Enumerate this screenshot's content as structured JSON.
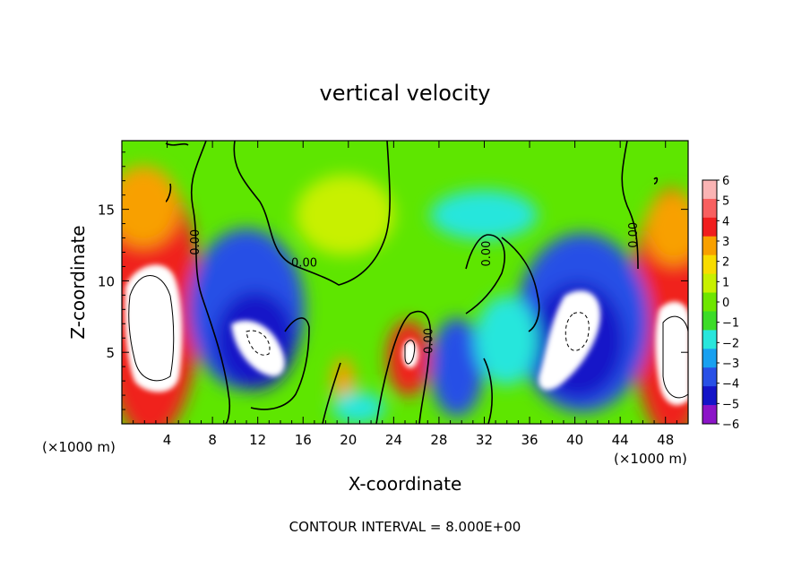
{
  "chart_data": {
    "type": "heatmap",
    "title": "vertical velocity",
    "xlabel": "X-coordinate",
    "ylabel": "Z-coordinate",
    "x_unit_left": "(×1000 m)",
    "x_unit_right": "(×1000 m)",
    "footer": "CONTOUR INTERVAL = 8.000E+00",
    "xlim": [
      0,
      50
    ],
    "ylim": [
      0,
      19.8
    ],
    "x_ticks": [
      4,
      8,
      12,
      16,
      20,
      24,
      28,
      32,
      36,
      40,
      44,
      48
    ],
    "y_ticks": [
      5,
      10,
      15
    ],
    "colorbar": {
      "range": [
        -6,
        6
      ],
      "labels": [
        "6",
        "5",
        "4",
        "3",
        "2",
        "1",
        "0",
        "−1",
        "−2",
        "−3",
        "−4",
        "−5",
        "−6"
      ],
      "colors": [
        "#fab4b4",
        "#f86060",
        "#f01e1e",
        "#f8a000",
        "#f8dc00",
        "#c8f000",
        "#6ee600",
        "#3cdc28",
        "#28e6dc",
        "#18a0f0",
        "#2850e6",
        "#1414c8",
        "#8c14c8"
      ]
    },
    "contour_labels": [
      {
        "text": "0.00",
        "x": 6.8,
        "y": 12.7,
        "rotate": -90
      },
      {
        "text": "0.00",
        "x": 16.1,
        "y": 11.0,
        "rotate": 0
      },
      {
        "text": "0.00",
        "x": 27.4,
        "y": 5.8,
        "rotate": -90
      },
      {
        "text": "0.00",
        "x": 32.5,
        "y": 11.9,
        "rotate": -90
      },
      {
        "text": "0.00",
        "x": 45.5,
        "y": 13.2,
        "rotate": -90
      }
    ],
    "features": [
      {
        "x": 2.5,
        "z": 6.5,
        "w": 6.5,
        "v": 6
      },
      {
        "x": 48,
        "z": 6.5,
        "w": 6.5,
        "v": 6
      },
      {
        "x": 25.8,
        "z": 5.2,
        "w": 3,
        "v": 5
      },
      {
        "x": 17.5,
        "z": 2.5,
        "w": 2,
        "v": 3
      },
      {
        "x": 11.8,
        "z": 6.5,
        "w": 6,
        "v": -6
      },
      {
        "x": 39.5,
        "z": 6.5,
        "w": 6,
        "v": -6
      },
      {
        "x": 31,
        "z": 3,
        "w": 4,
        "v": -4
      },
      {
        "x": 20,
        "z": 14,
        "w": 3,
        "v": 1.5
      },
      {
        "x": 30,
        "z": 12,
        "w": 2,
        "v": -2
      }
    ]
  }
}
